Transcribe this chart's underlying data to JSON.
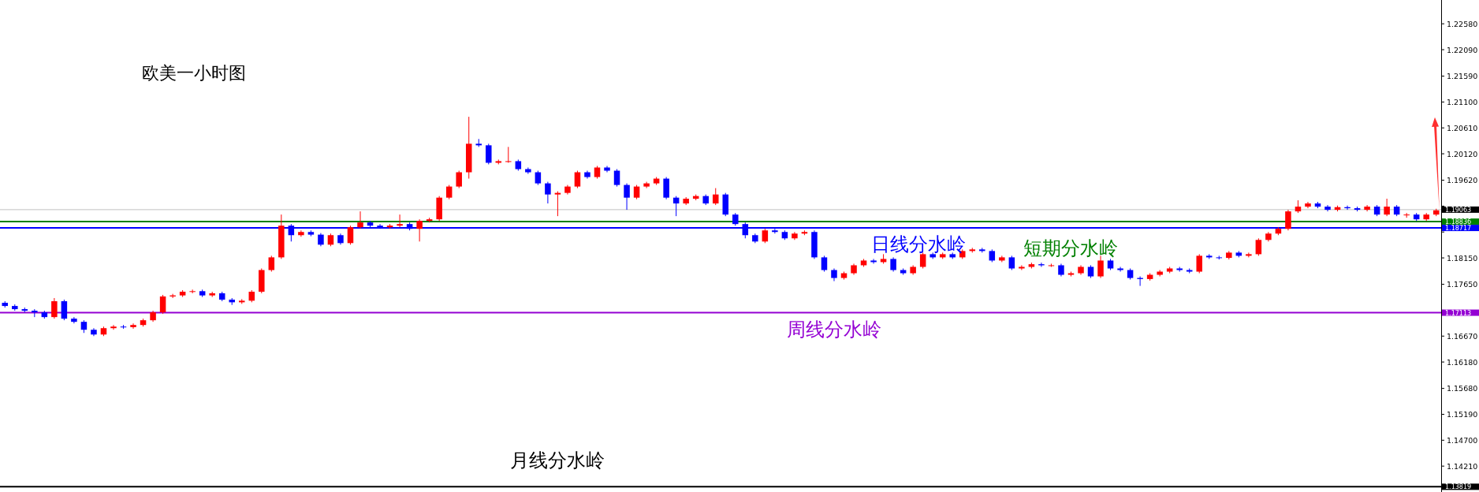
{
  "chart_data": {
    "type": "candlestick",
    "title": "欧美一小时图",
    "ohlc": [
      [
        1.173,
        1.1733,
        1.1721,
        1.1724
      ],
      [
        1.1724,
        1.1727,
        1.1715,
        1.1718
      ],
      [
        1.1718,
        1.1721,
        1.1712,
        1.1715
      ],
      [
        1.1715,
        1.1718,
        1.1703,
        1.1712
      ],
      [
        1.1712,
        1.1715,
        1.17,
        1.1703
      ],
      [
        1.1703,
        1.1739,
        1.17,
        1.1733
      ],
      [
        1.1733,
        1.1736,
        1.1697,
        1.17
      ],
      [
        1.17,
        1.1703,
        1.1691,
        1.1694
      ],
      [
        1.1694,
        1.1697,
        1.1673,
        1.1679
      ],
      [
        1.1679,
        1.1682,
        1.1667,
        1.167
      ],
      [
        1.167,
        1.1685,
        1.1667,
        1.1682
      ],
      [
        1.1682,
        1.1688,
        1.1679,
        1.1685
      ],
      [
        1.1685,
        1.1688,
        1.1681,
        1.1684
      ],
      [
        1.1684,
        1.1691,
        1.1681,
        1.1688
      ],
      [
        1.1688,
        1.17,
        1.1685,
        1.1697
      ],
      [
        1.1697,
        1.1715,
        1.1694,
        1.1712
      ],
      [
        1.1712,
        1.1745,
        1.1709,
        1.1742
      ],
      [
        1.1742,
        1.1747,
        1.1739,
        1.1744
      ],
      [
        1.1744,
        1.1754,
        1.1741,
        1.1751
      ],
      [
        1.1751,
        1.1755,
        1.1748,
        1.1752
      ],
      [
        1.1752,
        1.1755,
        1.1741,
        1.1744
      ],
      [
        1.1744,
        1.1751,
        1.1741,
        1.1748
      ],
      [
        1.1748,
        1.1751,
        1.1733,
        1.1736
      ],
      [
        1.1736,
        1.1739,
        1.1726,
        1.1731
      ],
      [
        1.1731,
        1.1737,
        1.1728,
        1.1734
      ],
      [
        1.1734,
        1.1754,
        1.1731,
        1.1751
      ],
      [
        1.1751,
        1.1795,
        1.1748,
        1.1792
      ],
      [
        1.1792,
        1.1819,
        1.1789,
        1.1816
      ],
      [
        1.1816,
        1.1897,
        1.1813,
        1.1876
      ],
      [
        1.1876,
        1.1879,
        1.1846,
        1.1858
      ],
      [
        1.1858,
        1.1867,
        1.1855,
        1.1864
      ],
      [
        1.1864,
        1.1867,
        1.1856,
        1.1859
      ],
      [
        1.1859,
        1.1862,
        1.1837,
        1.184
      ],
      [
        1.184,
        1.1861,
        1.1837,
        1.1858
      ],
      [
        1.1858,
        1.1861,
        1.184,
        1.1843
      ],
      [
        1.1843,
        1.1876,
        1.184,
        1.1873
      ],
      [
        1.1873,
        1.1903,
        1.187,
        1.1882
      ],
      [
        1.1882,
        1.1885,
        1.1873,
        1.1876
      ],
      [
        1.1876,
        1.1879,
        1.187,
        1.1873
      ],
      [
        1.1873,
        1.1879,
        1.187,
        1.1876
      ],
      [
        1.1876,
        1.1897,
        1.1873,
        1.1879
      ],
      [
        1.1879,
        1.1882,
        1.1867,
        1.187
      ],
      [
        1.187,
        1.1888,
        1.1846,
        1.1885
      ],
      [
        1.1885,
        1.1891,
        1.1882,
        1.1888
      ],
      [
        1.1888,
        1.1932,
        1.1885,
        1.1929
      ],
      [
        1.1929,
        1.1953,
        1.1926,
        1.195
      ],
      [
        1.195,
        1.198,
        1.1947,
        1.1977
      ],
      [
        1.1977,
        1.2082,
        1.1965,
        1.2031
      ],
      [
        1.2031,
        1.204,
        1.2025,
        1.2028
      ],
      [
        1.2028,
        1.2031,
        1.1992,
        1.1995
      ],
      [
        1.1995,
        1.2001,
        1.1992,
        1.1998
      ],
      [
        1.1998,
        1.2025,
        1.1995,
        1.1998
      ],
      [
        1.1998,
        1.2001,
        1.198,
        1.1983
      ],
      [
        1.1983,
        1.1986,
        1.1974,
        1.1977
      ],
      [
        1.1977,
        1.198,
        1.1953,
        1.1956
      ],
      [
        1.1956,
        1.1959,
        1.1918,
        1.1935
      ],
      [
        1.1935,
        1.1941,
        1.1894,
        1.1938
      ],
      [
        1.1938,
        1.1953,
        1.1935,
        1.195
      ],
      [
        1.195,
        1.198,
        1.1947,
        1.1977
      ],
      [
        1.1977,
        1.198,
        1.1965,
        1.1968
      ],
      [
        1.1968,
        1.1989,
        1.1965,
        1.1986
      ],
      [
        1.1986,
        1.1989,
        1.1977,
        1.198
      ],
      [
        1.198,
        1.1983,
        1.195,
        1.1953
      ],
      [
        1.1953,
        1.1956,
        1.1906,
        1.1929
      ],
      [
        1.1929,
        1.1953,
        1.1926,
        1.195
      ],
      [
        1.195,
        1.1959,
        1.1947,
        1.1956
      ],
      [
        1.1956,
        1.1968,
        1.1953,
        1.1965
      ],
      [
        1.1965,
        1.1968,
        1.1926,
        1.1929
      ],
      [
        1.1929,
        1.1932,
        1.1894,
        1.1918
      ],
      [
        1.1918,
        1.193,
        1.1915,
        1.1927
      ],
      [
        1.1927,
        1.1935,
        1.1924,
        1.1932
      ],
      [
        1.1932,
        1.1935,
        1.1915,
        1.1918
      ],
      [
        1.1918,
        1.1947,
        1.1915,
        1.1935
      ],
      [
        1.1935,
        1.1938,
        1.1894,
        1.1897
      ],
      [
        1.1897,
        1.19,
        1.1876,
        1.1879
      ],
      [
        1.1879,
        1.1882,
        1.1852,
        1.1858
      ],
      [
        1.1858,
        1.1861,
        1.1843,
        1.1846
      ],
      [
        1.1846,
        1.187,
        1.1843,
        1.1867
      ],
      [
        1.1867,
        1.187,
        1.1861,
        1.1864
      ],
      [
        1.1864,
        1.1867,
        1.1849,
        1.1852
      ],
      [
        1.1852,
        1.1864,
        1.1849,
        1.1861
      ],
      [
        1.1861,
        1.1867,
        1.1858,
        1.1864
      ],
      [
        1.1864,
        1.1867,
        1.1813,
        1.1816
      ],
      [
        1.1816,
        1.1819,
        1.1789,
        1.1792
      ],
      [
        1.1792,
        1.1795,
        1.1771,
        1.1777
      ],
      [
        1.1777,
        1.1789,
        1.1774,
        1.1786
      ],
      [
        1.1786,
        1.1804,
        1.1783,
        1.1801
      ],
      [
        1.1801,
        1.1813,
        1.1798,
        1.181
      ],
      [
        1.181,
        1.1813,
        1.1804,
        1.1807
      ],
      [
        1.1807,
        1.1822,
        1.1804,
        1.1813
      ],
      [
        1.1813,
        1.1816,
        1.1789,
        1.1792
      ],
      [
        1.1792,
        1.1795,
        1.1783,
        1.1786
      ],
      [
        1.1786,
        1.1801,
        1.1783,
        1.1798
      ],
      [
        1.1798,
        1.1825,
        1.1795,
        1.1822
      ],
      [
        1.1822,
        1.1825,
        1.1813,
        1.1816
      ],
      [
        1.1816,
        1.1825,
        1.1813,
        1.1822
      ],
      [
        1.1822,
        1.1825,
        1.1813,
        1.1816
      ],
      [
        1.1816,
        1.1831,
        1.1813,
        1.1828
      ],
      [
        1.1828,
        1.1834,
        1.1825,
        1.1831
      ],
      [
        1.1831,
        1.1834,
        1.1825,
        1.1828
      ],
      [
        1.1828,
        1.1831,
        1.1807,
        1.181
      ],
      [
        1.181,
        1.1819,
        1.1807,
        1.1816
      ],
      [
        1.1816,
        1.1819,
        1.1792,
        1.1795
      ],
      [
        1.1795,
        1.1801,
        1.1792,
        1.1798
      ],
      [
        1.1798,
        1.1806,
        1.1795,
        1.1803
      ],
      [
        1.1803,
        1.1806,
        1.1798,
        1.1801
      ],
      [
        1.1801,
        1.1804,
        1.1798,
        1.1801
      ],
      [
        1.1801,
        1.1804,
        1.178,
        1.1783
      ],
      [
        1.1783,
        1.1789,
        1.178,
        1.1786
      ],
      [
        1.1786,
        1.1801,
        1.1783,
        1.1798
      ],
      [
        1.1798,
        1.1801,
        1.1777,
        1.178
      ],
      [
        1.178,
        1.1819,
        1.1777,
        1.181
      ],
      [
        1.181,
        1.1813,
        1.1792,
        1.1795
      ],
      [
        1.1795,
        1.1798,
        1.1789,
        1.1792
      ],
      [
        1.1792,
        1.1795,
        1.1774,
        1.1777
      ],
      [
        1.1777,
        1.178,
        1.1762,
        1.1775
      ],
      [
        1.1775,
        1.1786,
        1.1772,
        1.1783
      ],
      [
        1.1783,
        1.1792,
        1.178,
        1.1789
      ],
      [
        1.1789,
        1.1798,
        1.1786,
        1.1795
      ],
      [
        1.1795,
        1.1798,
        1.1789,
        1.1792
      ],
      [
        1.1792,
        1.1795,
        1.1786,
        1.1789
      ],
      [
        1.1789,
        1.1822,
        1.1786,
        1.1819
      ],
      [
        1.1819,
        1.1822,
        1.1813,
        1.1816
      ],
      [
        1.1816,
        1.1819,
        1.1812,
        1.1815
      ],
      [
        1.1815,
        1.1828,
        1.1812,
        1.1825
      ],
      [
        1.1825,
        1.1828,
        1.1816,
        1.1819
      ],
      [
        1.1819,
        1.1825,
        1.1816,
        1.1822
      ],
      [
        1.1822,
        1.1852,
        1.1819,
        1.1849
      ],
      [
        1.1849,
        1.1864,
        1.1846,
        1.1861
      ],
      [
        1.1861,
        1.1873,
        1.1858,
        1.187
      ],
      [
        1.187,
        1.1906,
        1.1867,
        1.1903
      ],
      [
        1.1903,
        1.1924,
        1.19,
        1.1912
      ],
      [
        1.1912,
        1.1921,
        1.1909,
        1.1918
      ],
      [
        1.1918,
        1.1921,
        1.1909,
        1.1912
      ],
      [
        1.1912,
        1.1915,
        1.1903,
        1.1906
      ],
      [
        1.1906,
        1.1914,
        1.1903,
        1.1911
      ],
      [
        1.1911,
        1.1914,
        1.1906,
        1.1909
      ],
      [
        1.1909,
        1.1912,
        1.1903,
        1.1906
      ],
      [
        1.1906,
        1.1915,
        1.1903,
        1.1912
      ],
      [
        1.1912,
        1.1915,
        1.1894,
        1.1897
      ],
      [
        1.1897,
        1.1927,
        1.1894,
        1.1912
      ],
      [
        1.1912,
        1.1915,
        1.1894,
        1.1897
      ],
      [
        1.1897,
        1.19,
        1.1891,
        1.1897
      ],
      [
        1.1897,
        1.19,
        1.1885,
        1.1888
      ],
      [
        1.1888,
        1.19,
        1.1885,
        1.1897
      ],
      [
        1.1897,
        1.1908,
        1.1894,
        1.1905
      ]
    ],
    "colors": [
      "#0000ff",
      "#0000ff",
      "#0000ff",
      "#0000ff",
      "#0000ff",
      "#ff0000",
      "#0000ff",
      "#0000ff",
      "#0000ff",
      "#0000ff",
      "#ff0000",
      "#ff0000",
      "#0000ff",
      "#ff0000",
      "#ff0000",
      "#ff0000",
      "#ff0000",
      "#ff0000",
      "#ff0000",
      "#ff0000",
      "#0000ff",
      "#ff0000",
      "#0000ff",
      "#0000ff",
      "#ff0000",
      "#ff0000",
      "#ff0000",
      "#ff0000",
      "#ff0000",
      "#0000ff",
      "#ff0000",
      "#0000ff",
      "#0000ff",
      "#ff0000",
      "#0000ff",
      "#ff0000",
      "#ff0000",
      "#0000ff",
      "#0000ff",
      "#ff0000",
      "#ff0000",
      "#0000ff",
      "#ff0000",
      "#ff0000",
      "#ff0000",
      "#ff0000",
      "#ff0000",
      "#ff0000",
      "#0000ff",
      "#0000ff",
      "#ff0000",
      "#ff0000",
      "#0000ff",
      "#0000ff",
      "#0000ff",
      "#0000ff",
      "#ff0000",
      "#ff0000",
      "#ff0000",
      "#0000ff",
      "#ff0000",
      "#0000ff",
      "#0000ff",
      "#0000ff",
      "#ff0000",
      "#ff0000",
      "#ff0000",
      "#0000ff",
      "#0000ff",
      "#ff0000",
      "#ff0000",
      "#0000ff",
      "#ff0000",
      "#0000ff",
      "#0000ff",
      "#0000ff",
      "#0000ff",
      "#ff0000",
      "#0000ff",
      "#0000ff",
      "#ff0000",
      "#ff0000",
      "#0000ff",
      "#0000ff",
      "#0000ff",
      "#ff0000",
      "#ff0000",
      "#ff0000",
      "#0000ff",
      "#ff0000",
      "#0000ff",
      "#0000ff",
      "#ff0000",
      "#ff0000",
      "#0000ff",
      "#ff0000",
      "#0000ff",
      "#ff0000",
      "#ff0000",
      "#0000ff",
      "#0000ff",
      "#ff0000",
      "#0000ff",
      "#ff0000",
      "#ff0000",
      "#0000ff",
      "#ff0000",
      "#0000ff",
      "#ff0000",
      "#ff0000",
      "#0000ff",
      "#ff0000",
      "#0000ff",
      "#0000ff",
      "#0000ff",
      "#0000ff",
      "#ff0000",
      "#ff0000",
      "#ff0000",
      "#0000ff",
      "#0000ff",
      "#ff0000",
      "#0000ff",
      "#0000ff",
      "#ff0000",
      "#0000ff",
      "#ff0000",
      "#ff0000",
      "#ff0000",
      "#ff0000",
      "#ff0000",
      "#ff0000",
      "#ff0000",
      "#0000ff",
      "#0000ff",
      "#ff0000",
      "#0000ff",
      "#0000ff",
      "#ff0000",
      "#0000ff",
      "#ff0000",
      "#0000ff",
      "#ff0000",
      "#0000ff",
      "#ff0000",
      "#ff0000"
    ],
    "ylim": [
      1.1372,
      1.2303
    ],
    "categories": [
      null,
      null,
      null,
      null,
      null,
      null,
      null,
      null,
      null,
      null,
      null,
      null,
      null,
      null,
      null,
      null,
      null,
      null,
      null,
      null,
      null,
      null,
      null,
      null,
      null,
      null,
      null,
      null,
      null,
      null,
      null,
      null,
      null,
      null,
      null,
      null,
      null,
      null,
      null,
      null,
      null,
      null,
      null,
      null,
      null,
      null,
      null,
      null,
      null,
      null,
      null,
      null,
      null,
      null,
      null,
      null,
      null,
      null,
      null,
      null,
      null,
      null,
      null,
      null,
      null,
      null,
      null,
      null,
      null,
      null,
      null,
      null,
      null,
      null,
      null,
      null,
      null,
      null,
      null,
      null,
      null,
      null,
      null,
      null,
      null,
      null,
      null,
      null,
      null,
      null,
      null,
      null,
      null,
      null,
      null,
      null,
      null,
      null,
      null,
      null,
      null,
      null,
      null,
      null,
      null,
      null,
      null,
      null,
      null,
      null,
      null,
      null,
      null,
      null,
      null,
      null,
      null,
      null,
      null,
      null,
      null,
      null,
      null,
      null,
      null,
      null,
      null,
      null,
      null,
      null,
      null,
      null,
      null,
      null,
      null,
      null,
      null,
      null,
      null,
      null,
      null,
      null,
      null,
      null,
      null,
      null
    ],
    "yticks": [
      {
        "value": 1.2258,
        "label": "1.22580"
      },
      {
        "value": 1.2209,
        "label": "1.22090"
      },
      {
        "value": 1.2159,
        "label": "1.21590"
      },
      {
        "value": 1.211,
        "label": "1.21100"
      },
      {
        "value": 1.2061,
        "label": "1.20610"
      },
      {
        "value": 1.2012,
        "label": "1.20120"
      },
      {
        "value": 1.1962,
        "label": "1.19620"
      },
      {
        "value": 1.1913,
        "label": null
      },
      {
        "value": 1.19063,
        "label": "1.19063"
      },
      {
        "value": 1.18836,
        "label": "1.18836"
      },
      {
        "value": 1.18717,
        "label": "1.18717"
      },
      {
        "value": 1.1864,
        "label": null
      },
      {
        "value": 1.1815,
        "label": "1.18150"
      },
      {
        "value": 1.1765,
        "label": "1.17650"
      },
      {
        "value": 1.1716,
        "label": null
      },
      {
        "value": 1.17113,
        "label": "1.17113"
      },
      {
        "value": 1.1667,
        "label": "1.16670"
      },
      {
        "value": 1.1618,
        "label": "1.16180"
      },
      {
        "value": 1.1568,
        "label": "1.15680"
      },
      {
        "value": 1.1519,
        "label": "1.15190"
      },
      {
        "value": 1.147,
        "label": "1.14700"
      },
      {
        "value": 1.1421,
        "label": "1.14210"
      },
      {
        "value": 1.13819,
        "label": "1.13819"
      }
    ],
    "tick_labels": "y",
    "ref_lines": [
      {
        "axis": "y",
        "value": 1.19063,
        "label": null,
        "color": "#c0c0c0"
      },
      {
        "axis": "y",
        "value": 1.18836,
        "label": "短期分水岭",
        "color": "#008000"
      },
      {
        "axis": "y",
        "value": 1.18717,
        "label": "日线分水岭",
        "color": "#0000ff"
      },
      {
        "axis": "y",
        "value": 1.17113,
        "label": "周线分水岭",
        "color": "#9400d3"
      },
      {
        "axis": "y",
        "value": 1.13819,
        "label": "月线分水岭",
        "color": "#000000"
      }
    ]
  }
}
